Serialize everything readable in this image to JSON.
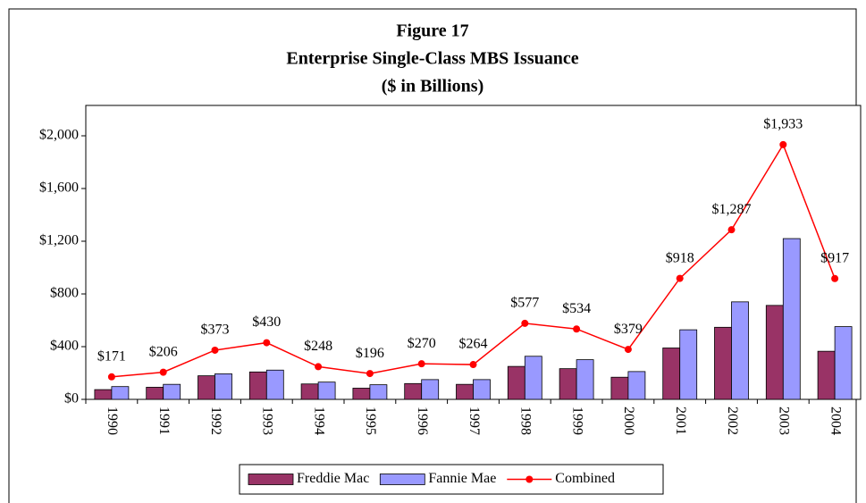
{
  "chart_data": {
    "type": "bar_line",
    "title": "Figure 17",
    "subtitle": "Enterprise Single-Class MBS Issuance",
    "units": "($ in Billions)",
    "categories": [
      "1990",
      "1991",
      "1992",
      "1993",
      "1994",
      "1995",
      "1996",
      "1997",
      "1998",
      "1999",
      "2000",
      "2001",
      "2002",
      "2003",
      "2004"
    ],
    "series": [
      {
        "name": "Freddie Mac",
        "color": "#993366",
        "type": "bar",
        "values": [
          74,
          92,
          179,
          208,
          117,
          85,
          120,
          114,
          250,
          233,
          168,
          390,
          547,
          713,
          365
        ]
      },
      {
        "name": "Fannie Mae",
        "color": "#9999ff",
        "type": "bar",
        "values": [
          97,
          114,
          194,
          222,
          131,
          111,
          150,
          150,
          327,
          301,
          211,
          528,
          740,
          1220,
          552
        ]
      },
      {
        "name": "Combined",
        "color": "#ff0000",
        "type": "line",
        "values": [
          171,
          206,
          373,
          430,
          248,
          196,
          270,
          264,
          577,
          534,
          379,
          918,
          1287,
          1933,
          917
        ],
        "value_labels": [
          "$171",
          "$206",
          "$373",
          "$430",
          "$248",
          "$196",
          "$270",
          "$264",
          "$577",
          "$534",
          "$379",
          "$918",
          "$1,287",
          "$1,933",
          "$917"
        ]
      }
    ],
    "ylim": [
      0,
      2000
    ],
    "yticks": [
      {
        "value": 0,
        "label": "$0"
      },
      {
        "value": 400,
        "label": "$400"
      },
      {
        "value": 800,
        "label": "$800"
      },
      {
        "value": 1200,
        "label": "$1,200"
      },
      {
        "value": 1600,
        "label": "$1,600"
      },
      {
        "value": 2000,
        "label": "$2,000"
      }
    ],
    "legend": "bottom"
  }
}
